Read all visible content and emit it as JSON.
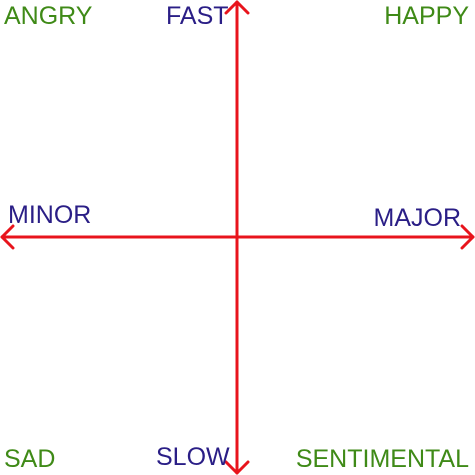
{
  "quadrants": {
    "top_left": "ANGRY",
    "top_right": "HAPPY",
    "bottom_left": "SAD",
    "bottom_right": "SENTIMENTAL"
  },
  "axes": {
    "vertical": {
      "top": "FAST",
      "bottom": "SLOW"
    },
    "horizontal": {
      "left": "MINOR",
      "right": "MAJOR"
    }
  },
  "colors": {
    "axis": "#e8141c",
    "axis_label": "#2a1e86",
    "quadrant_label": "#3f8a17"
  }
}
